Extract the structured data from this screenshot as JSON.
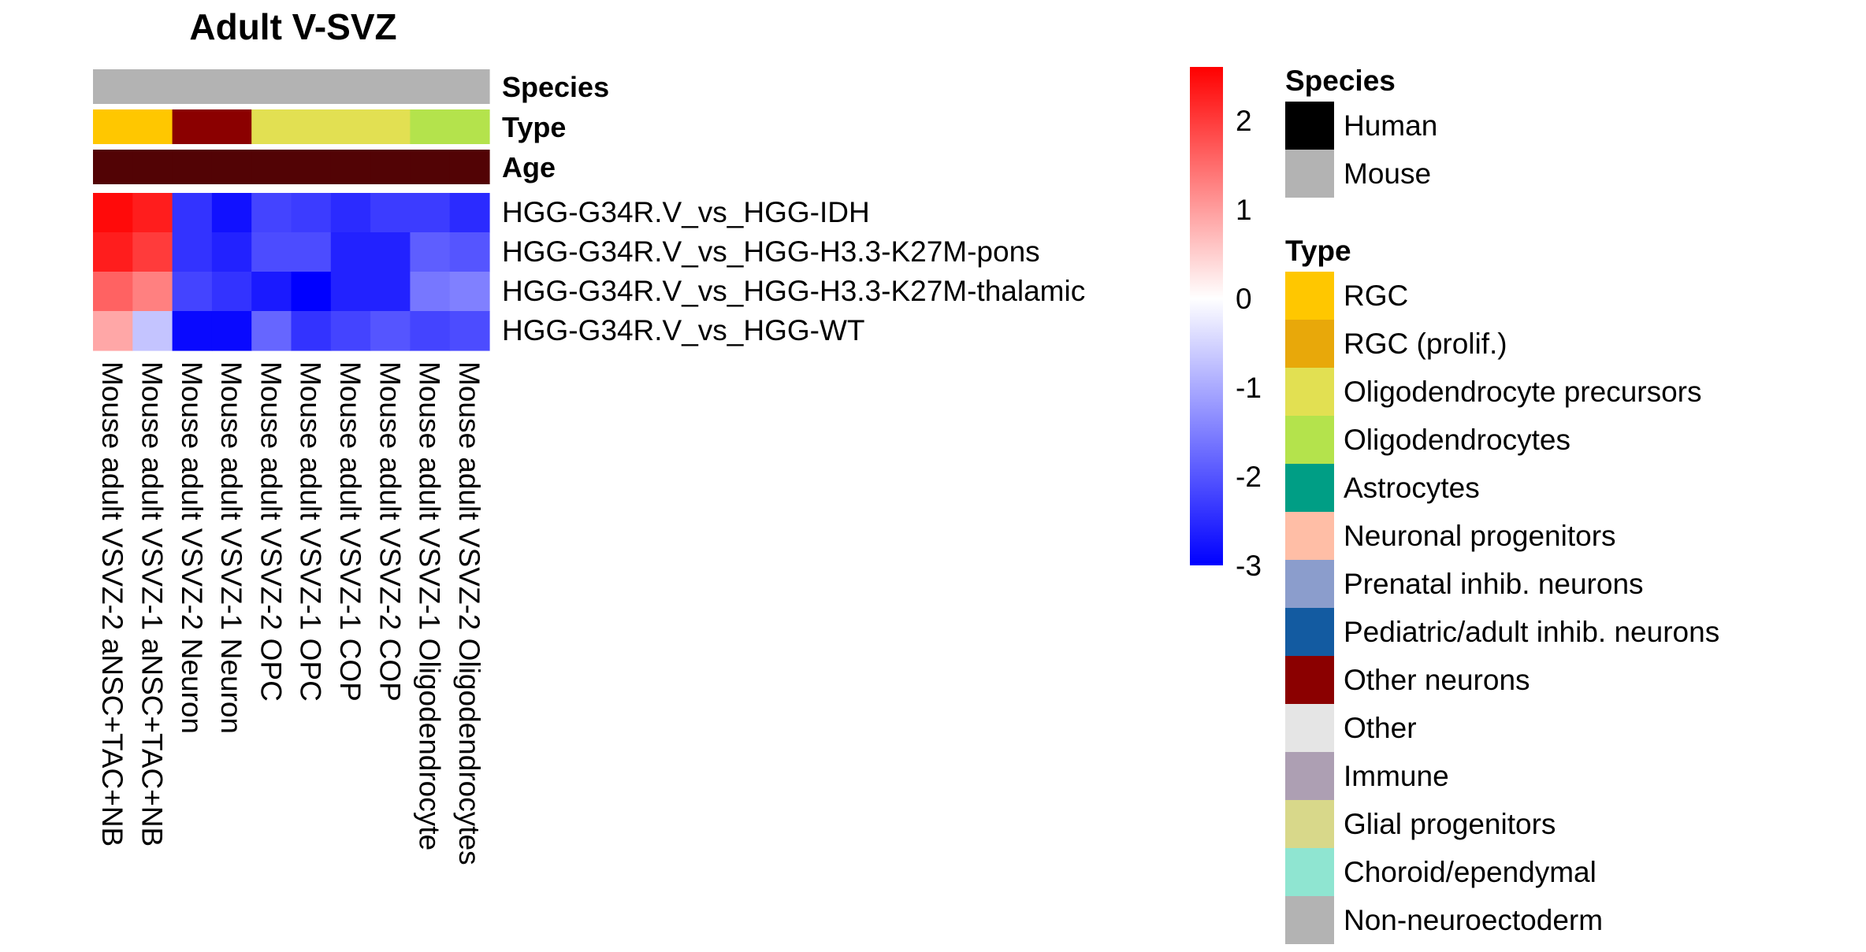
{
  "chart_data": {
    "type": "heatmap",
    "title": "Adult V-SVZ",
    "columns": [
      "Mouse adult VSVZ-2 aNSC+TAC+NB",
      "Mouse adult VSVZ-1 aNSC+TAC+NB",
      "Mouse adult VSVZ-2 Neuron",
      "Mouse adult VSVZ-1 Neuron",
      "Mouse adult VSVZ-2 OPC",
      "Mouse adult VSVZ-1 OPC",
      "Mouse adult VSVZ-1 COP",
      "Mouse adult VSVZ-2 COP",
      "Mouse adult VSVZ-1 Oligodendrocyte",
      "Mouse adult VSVZ-2 Oligodendrocytes"
    ],
    "rows": [
      "HGG-G34R.V_vs_HGG-IDH",
      "HGG-G34R.V_vs_HGG-H3.3-K27M-pons",
      "HGG-G34R.V_vs_HGG-H3.3-K27M-thalamic",
      "HGG-G34R.V_vs_HGG-WT"
    ],
    "values": [
      [
        2.5,
        2.3,
        -2.4,
        -2.8,
        -2.2,
        -2.3,
        -2.5,
        -2.3,
        -2.3,
        -2.5
      ],
      [
        2.3,
        2.0,
        -2.4,
        -2.6,
        -2.1,
        -2.1,
        -2.6,
        -2.6,
        -1.9,
        -2.0
      ],
      [
        1.6,
        1.3,
        -2.2,
        -2.4,
        -2.7,
        -3.0,
        -2.6,
        -2.6,
        -1.6,
        -1.5
      ],
      [
        0.9,
        -0.7,
        -2.9,
        -2.9,
        -1.8,
        -2.4,
        -2.2,
        -2.0,
        -2.2,
        -2.1
      ]
    ],
    "annotations": [
      {
        "name": "Species",
        "values": [
          "Mouse",
          "Mouse",
          "Mouse",
          "Mouse",
          "Mouse",
          "Mouse",
          "Mouse",
          "Mouse",
          "Mouse",
          "Mouse"
        ]
      },
      {
        "name": "Type",
        "values": [
          "RGC",
          "RGC",
          "Other neurons",
          "Other neurons",
          "Oligodendrocyte precursors",
          "Oligodendrocyte precursors",
          "Oligodendrocyte precursors",
          "Oligodendrocyte precursors",
          "Oligodendrocytes",
          "Oligodendrocytes"
        ]
      },
      {
        "name": "Age",
        "values": [
          "Adult",
          "Adult",
          "Adult",
          "Adult",
          "Adult",
          "Adult",
          "Adult",
          "Adult",
          "Adult",
          "Adult"
        ]
      }
    ],
    "age_color": "#520305",
    "color_scale": {
      "min": -3,
      "max": 2.6,
      "low": "#0000ff",
      "mid": "#ffffff",
      "high": "#ff0000",
      "ticks": [
        2,
        1,
        0,
        -1,
        -2,
        -3
      ]
    },
    "legends": [
      {
        "title": "Species",
        "items": [
          {
            "label": "Human",
            "color": "#000000"
          },
          {
            "label": "Mouse",
            "color": "#b3b3b3"
          }
        ]
      },
      {
        "title": "Type",
        "items": [
          {
            "label": "RGC",
            "color": "#ffc700"
          },
          {
            "label": "RGC (prolif.)",
            "color": "#e8a80a"
          },
          {
            "label": "Oligodendrocyte precursors",
            "color": "#e2e052"
          },
          {
            "label": "Oligodendrocytes",
            "color": "#b4e34c"
          },
          {
            "label": "Astrocytes",
            "color": "#009e85"
          },
          {
            "label": "Neuronal progenitors",
            "color": "#ffbea6"
          },
          {
            "label": "Prenatal inhib. neurons",
            "color": "#8b9dcc"
          },
          {
            "label": "Pediatric/adult inhib. neurons",
            "color": "#135ba1"
          },
          {
            "label": "Other neurons",
            "color": "#8b0000"
          },
          {
            "label": "Other",
            "color": "#e5e5e5"
          },
          {
            "label": "Immune",
            "color": "#ad9fb3"
          },
          {
            "label": "Glial progenitors",
            "color": "#d8d88a"
          },
          {
            "label": "Choroid/ependymal",
            "color": "#8fe5d1"
          },
          {
            "label": "Non-neuroectoderm",
            "color": "#b3b3b3"
          }
        ]
      }
    ]
  }
}
